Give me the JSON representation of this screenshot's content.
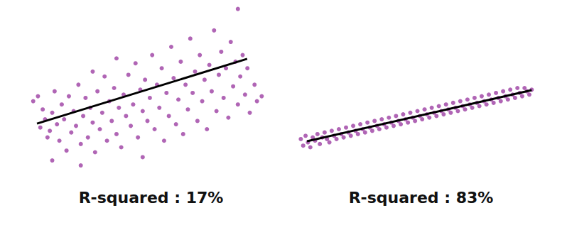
{
  "chart_data": [
    {
      "type": "scatter",
      "title": "R-squared : 17%",
      "xlim": [
        0,
        100
      ],
      "ylim": [
        0,
        100
      ],
      "tick_labels": false,
      "grid": false,
      "series": [
        {
          "type": "scatter",
          "color": "#a24aa8",
          "marker": "circle",
          "x": [
            2,
            4,
            5,
            6,
            7,
            8,
            9,
            10,
            10,
            11,
            12,
            13,
            14,
            15,
            16,
            17,
            18,
            19,
            20,
            21,
            22,
            22,
            23,
            24,
            25,
            26,
            27,
            27,
            28,
            29,
            30,
            31,
            32,
            33,
            34,
            35,
            36,
            37,
            37,
            38,
            39,
            40,
            41,
            42,
            43,
            44,
            45,
            46,
            47,
            48,
            48,
            49,
            50,
            51,
            52,
            53,
            54,
            55,
            56,
            57,
            58,
            59,
            60,
            61,
            62,
            63,
            64,
            65,
            66,
            67,
            68,
            69,
            70,
            71,
            72,
            73,
            74,
            75,
            76,
            77,
            78,
            79,
            80,
            81,
            82,
            83,
            84,
            85,
            86,
            87,
            88,
            88,
            89,
            90,
            91,
            92,
            93,
            95,
            96,
            98
          ],
          "values": [
            42,
            45,
            26,
            37,
            31,
            20,
            24,
            35,
            6,
            48,
            28,
            18,
            40,
            31,
            12,
            45,
            23,
            36,
            27,
            52,
            16,
            3,
            33,
            44,
            20,
            38,
            29,
            60,
            11,
            48,
            25,
            35,
            57,
            18,
            42,
            30,
            50,
            22,
            68,
            38,
            14,
            46,
            33,
            58,
            27,
            40,
            65,
            20,
            49,
            36,
            8,
            55,
            30,
            44,
            70,
            25,
            52,
            38,
            62,
            18,
            47,
            33,
            75,
            56,
            28,
            43,
            66,
            22,
            52,
            37,
            80,
            47,
            60,
            30,
            70,
            42,
            55,
            25,
            64,
            48,
            85,
            36,
            58,
            72,
            44,
            62,
            32,
            78,
            51,
            66,
            40,
            98,
            57,
            70,
            46,
            62,
            35,
            52,
            42,
            45
          ]
        },
        {
          "type": "line",
          "color": "#000000",
          "line_style": "solid",
          "x": [
            3.6,
            91.9
          ],
          "values": [
            28.4,
            67.7
          ]
        }
      ]
    },
    {
      "type": "scatter",
      "title": "R-squared : 83%",
      "xlim": [
        0,
        100
      ],
      "ylim": [
        0,
        100
      ],
      "tick_labels": false,
      "grid": false,
      "series": [
        {
          "type": "scatter",
          "color": "#a24aa8",
          "marker": "circle",
          "x": [
            1,
            2,
            3,
            4,
            5,
            6,
            7,
            8,
            9,
            10,
            11,
            12,
            13,
            14,
            15,
            16,
            17,
            18,
            19,
            20,
            21,
            22,
            23,
            24,
            25,
            26,
            27,
            28,
            29,
            30,
            31,
            32,
            33,
            34,
            35,
            36,
            37,
            38,
            39,
            40,
            41,
            42,
            43,
            44,
            45,
            46,
            47,
            48,
            49,
            50,
            51,
            52,
            53,
            54,
            55,
            56,
            57,
            58,
            59,
            60,
            61,
            62,
            63,
            64,
            65,
            66,
            67,
            68,
            69,
            70,
            71,
            72,
            73,
            74,
            75,
            76,
            77,
            78,
            79,
            80,
            81,
            82,
            83,
            84,
            85,
            86,
            87,
            88,
            89,
            90,
            91,
            92,
            93,
            94,
            95,
            96,
            97,
            98
          ],
          "values": [
            19,
            15,
            21,
            17,
            14,
            20,
            18,
            22,
            16,
            20,
            23,
            19,
            17,
            24,
            21,
            19,
            25,
            22,
            20,
            26,
            23,
            21,
            27,
            24,
            22,
            28,
            25,
            23,
            29,
            26,
            24,
            30,
            27,
            25,
            31,
            28,
            26,
            32,
            29,
            27,
            33,
            30,
            28,
            34,
            31,
            29,
            35,
            32,
            30,
            36,
            33,
            31,
            37,
            34,
            32,
            38,
            35,
            33,
            39,
            36,
            34,
            40,
            37,
            35,
            41,
            38,
            36,
            42,
            39,
            37,
            43,
            40,
            38,
            44,
            41,
            39,
            45,
            42,
            40,
            46,
            43,
            41,
            47,
            44,
            42,
            48,
            45,
            43,
            49,
            46,
            44,
            50,
            47,
            45,
            50,
            48,
            46,
            49
          ]
        },
        {
          "type": "line",
          "color": "#000000",
          "line_style": "solid",
          "x": [
            3.6,
            98
          ],
          "values": [
            17.7,
            48.7
          ]
        }
      ]
    }
  ]
}
